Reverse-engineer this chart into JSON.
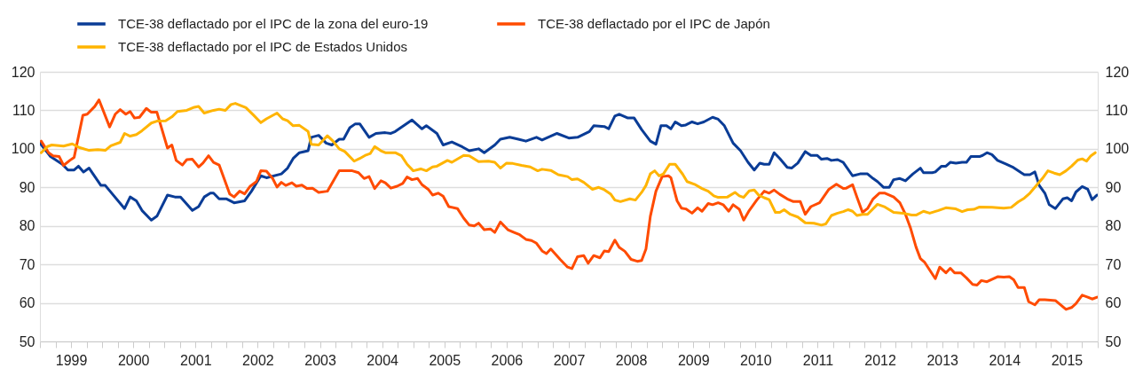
{
  "chart_data": {
    "type": "line",
    "legend": "top",
    "grid": "y",
    "xlim": [
      1999,
      2016
    ],
    "xticks": [
      {
        "value": 1999,
        "label": null
      },
      {
        "value": 1999.25,
        "label": null
      },
      {
        "value": 1999.5,
        "label": "1999"
      },
      {
        "value": 1999.75,
        "label": null
      },
      {
        "value": 2000,
        "label": null
      },
      {
        "value": 2000.25,
        "label": null
      },
      {
        "value": 2000.5,
        "label": "2000"
      },
      {
        "value": 2000.75,
        "label": null
      },
      {
        "value": 2001,
        "label": null
      },
      {
        "value": 2001.25,
        "label": null
      },
      {
        "value": 2001.5,
        "label": "2001"
      },
      {
        "value": 2001.75,
        "label": null
      },
      {
        "value": 2002,
        "label": null
      },
      {
        "value": 2002.25,
        "label": null
      },
      {
        "value": 2002.5,
        "label": "2002"
      },
      {
        "value": 2002.75,
        "label": null
      },
      {
        "value": 2003,
        "label": null
      },
      {
        "value": 2003.25,
        "label": null
      },
      {
        "value": 2003.5,
        "label": "2003"
      },
      {
        "value": 2003.75,
        "label": null
      },
      {
        "value": 2004,
        "label": null
      },
      {
        "value": 2004.25,
        "label": null
      },
      {
        "value": 2004.5,
        "label": "2004"
      },
      {
        "value": 2004.75,
        "label": null
      },
      {
        "value": 2005,
        "label": null
      },
      {
        "value": 2005.25,
        "label": null
      },
      {
        "value": 2005.5,
        "label": "2005"
      },
      {
        "value": 2005.75,
        "label": null
      },
      {
        "value": 2006,
        "label": null
      },
      {
        "value": 2006.25,
        "label": null
      },
      {
        "value": 2006.5,
        "label": "2006"
      },
      {
        "value": 2006.75,
        "label": null
      },
      {
        "value": 2007,
        "label": null
      },
      {
        "value": 2007.25,
        "label": null
      },
      {
        "value": 2007.5,
        "label": "2007"
      },
      {
        "value": 2007.75,
        "label": null
      },
      {
        "value": 2008,
        "label": null
      },
      {
        "value": 2008.25,
        "label": null
      },
      {
        "value": 2008.5,
        "label": "2008"
      },
      {
        "value": 2008.75,
        "label": null
      },
      {
        "value": 2009,
        "label": null
      },
      {
        "value": 2009.25,
        "label": null
      },
      {
        "value": 2009.5,
        "label": "2009"
      },
      {
        "value": 2009.75,
        "label": null
      },
      {
        "value": 2010,
        "label": null
      },
      {
        "value": 2010.25,
        "label": null
      },
      {
        "value": 2010.5,
        "label": "2010"
      },
      {
        "value": 2010.75,
        "label": null
      },
      {
        "value": 2011,
        "label": null
      },
      {
        "value": 2011.25,
        "label": null
      },
      {
        "value": 2011.5,
        "label": "2011"
      },
      {
        "value": 2011.75,
        "label": null
      },
      {
        "value": 2012,
        "label": null
      },
      {
        "value": 2012.25,
        "label": null
      },
      {
        "value": 2012.5,
        "label": "2012"
      },
      {
        "value": 2012.75,
        "label": null
      },
      {
        "value": 2013,
        "label": null
      },
      {
        "value": 2013.25,
        "label": null
      },
      {
        "value": 2013.5,
        "label": "2013"
      },
      {
        "value": 2013.75,
        "label": null
      },
      {
        "value": 2014,
        "label": null
      },
      {
        "value": 2014.25,
        "label": null
      },
      {
        "value": 2014.5,
        "label": "2014"
      },
      {
        "value": 2014.75,
        "label": null
      },
      {
        "value": 2015,
        "label": null
      },
      {
        "value": 2015.25,
        "label": null
      },
      {
        "value": 2015.5,
        "label": "2015"
      },
      {
        "value": 2015.75,
        "label": null
      },
      {
        "value": 2016,
        "label": null
      }
    ],
    "ylim": [
      50,
      120
    ],
    "yticks": [
      50,
      60,
      70,
      80,
      90,
      100,
      110,
      120
    ],
    "y2lim": [
      50,
      120
    ],
    "y2ticks": [
      50,
      60,
      70,
      80,
      90,
      100,
      110,
      120
    ],
    "series": [
      {
        "name": "TCE-38 deflactado por el IPC de la zona del euro-19",
        "color": "#0a3c96",
        "x": [
          1999.0,
          1999.17,
          1999.36,
          1999.45,
          1999.55,
          1999.62,
          1999.7,
          1999.79,
          1999.98,
          2000.05,
          2000.36,
          2000.45,
          2000.55,
          2000.64,
          2000.79,
          2000.88,
          2001.05,
          2001.17,
          2001.26,
          2001.45,
          2001.55,
          2001.64,
          2001.74,
          2001.79,
          2001.88,
          2002.0,
          2002.12,
          2002.29,
          2002.4,
          2002.55,
          2002.64,
          2002.88,
          2002.98,
          2003.07,
          2003.17,
          2003.31,
          2003.36,
          2003.48,
          2003.6,
          2003.69,
          2003.81,
          2003.88,
          2003.98,
          2004.07,
          2004.14,
          2004.29,
          2004.4,
          2004.55,
          2004.64,
          2004.71,
          2004.98,
          2005.14,
          2005.21,
          2005.38,
          2005.48,
          2005.62,
          2005.79,
          2005.9,
          2006.05,
          2006.14,
          2006.31,
          2006.4,
          2006.55,
          2006.69,
          2006.81,
          2006.98,
          2007.07,
          2007.31,
          2007.5,
          2007.64,
          2007.83,
          2007.9,
          2008.07,
          2008.14,
          2008.24,
          2008.31,
          2008.45,
          2008.55,
          2008.67,
          2008.81,
          2008.9,
          2008.98,
          2009.07,
          2009.14,
          2009.21,
          2009.31,
          2009.38,
          2009.48,
          2009.57,
          2009.67,
          2009.81,
          2009.9,
          2010.0,
          2010.14,
          2010.26,
          2010.38,
          2010.48,
          2010.57,
          2010.64,
          2010.72,
          2010.8,
          2010.89,
          2011.01,
          2011.08,
          2011.18,
          2011.3,
          2011.39,
          2011.49,
          2011.56,
          2011.65,
          2011.72,
          2011.82,
          2011.91,
          2012.06,
          2012.18,
          2012.3,
          2012.39,
          2012.46,
          2012.56,
          2012.65,
          2012.72,
          2012.82,
          2012.91,
          2013.03,
          2013.15,
          2013.2,
          2013.34,
          2013.39,
          2013.49,
          2013.56,
          2013.63,
          2013.72,
          2013.82,
          2013.89,
          2013.96,
          2014.1,
          2014.15,
          2014.22,
          2014.3,
          2014.39,
          2014.53,
          2014.63,
          2014.77,
          2014.82,
          2014.91,
          2014.99,
          2015.06,
          2015.15,
          2015.22,
          2015.32,
          2015.44,
          2015.51,
          2015.58,
          2015.65,
          2015.75,
          2015.84,
          2015.91,
          2015.99
        ],
        "values": [
          101.5,
          98,
          96,
          94.5,
          94.5,
          95.5,
          94,
          95,
          90.5,
          90.5,
          84.5,
          87.5,
          86.5,
          84,
          81.5,
          82.5,
          88,
          87.5,
          87.5,
          84,
          85,
          87.5,
          88.5,
          88.5,
          87,
          87,
          86,
          86.5,
          89,
          93,
          92.5,
          93.5,
          95,
          97.5,
          99,
          99.5,
          103,
          103.5,
          101.5,
          101,
          102.5,
          102.5,
          105.5,
          106.5,
          106.5,
          103,
          104,
          104.2,
          104,
          104.5,
          107.5,
          105.2,
          106,
          104,
          101,
          101.8,
          100.5,
          99.5,
          100,
          99,
          101,
          102.5,
          103,
          102.5,
          102,
          103,
          102.3,
          104,
          102.8,
          103,
          104.5,
          106,
          105.8,
          105.2,
          108.5,
          109,
          108,
          108,
          105,
          102,
          101.2,
          106,
          106,
          105.2,
          107,
          106,
          106.2,
          107,
          106.5,
          107,
          108.2,
          107.7,
          106,
          101.5,
          99.5,
          96.5,
          94.5,
          96.3,
          96,
          96,
          99,
          97.5,
          95.2,
          95,
          96.3,
          99.3,
          98.3,
          98.3,
          97.3,
          97.5,
          97,
          97.2,
          96.5,
          93,
          93.5,
          93.5,
          92.3,
          91.5,
          90,
          90,
          92,
          92.3,
          91.7,
          93.5,
          95,
          93.8,
          93.8,
          94,
          95.5,
          95.5,
          96.5,
          96.3,
          96.5,
          96.5,
          98,
          98,
          98.3,
          99,
          98.5,
          97,
          96,
          95.3,
          93.8,
          93.3,
          93.3,
          94,
          90.5,
          88.5,
          85.5,
          84.5,
          87,
          87.3,
          86.5,
          88.8,
          90.2,
          89.5,
          86.8,
          88
        ]
      },
      {
        "name": "TCE-38 deflactado por el IPC de Japón",
        "color": "#ff4b00",
        "x": [
          1999.02,
          1999.14,
          1999.21,
          1999.31,
          1999.38,
          1999.48,
          1999.55,
          1999.69,
          1999.76,
          1999.88,
          1999.95,
          2000.12,
          2000.21,
          2000.29,
          2000.38,
          2000.45,
          2000.52,
          2000.6,
          2000.71,
          2000.79,
          2000.88,
          2001.05,
          2001.12,
          2001.19,
          2001.29,
          2001.36,
          2001.45,
          2001.55,
          2001.62,
          2001.71,
          2001.79,
          2001.88,
          2002.05,
          2002.12,
          2002.21,
          2002.29,
          2002.38,
          2002.48,
          2002.55,
          2002.64,
          2002.74,
          2002.81,
          2002.88,
          2002.95,
          2003.05,
          2003.12,
          2003.21,
          2003.29,
          2003.38,
          2003.48,
          2003.62,
          2003.81,
          2004.02,
          2004.12,
          2004.21,
          2004.29,
          2004.38,
          2004.48,
          2004.55,
          2004.64,
          2004.74,
          2004.83,
          2004.9,
          2004.98,
          2005.07,
          2005.14,
          2005.24,
          2005.31,
          2005.4,
          2005.48,
          2005.57,
          2005.71,
          2005.81,
          2005.9,
          2005.98,
          2006.05,
          2006.14,
          2006.24,
          2006.31,
          2006.4,
          2006.52,
          2006.62,
          2006.71,
          2006.81,
          2006.9,
          2006.98,
          2007.07,
          2007.14,
          2007.21,
          2007.36,
          2007.48,
          2007.55,
          2007.64,
          2007.74,
          2007.81,
          2007.9,
          2008.0,
          2008.07,
          2008.14,
          2008.24,
          2008.31,
          2008.4,
          2008.5,
          2008.6,
          2008.67,
          2008.74,
          2008.81,
          2008.9,
          2009.0,
          2009.1,
          2009.14,
          2009.24,
          2009.31,
          2009.38,
          2009.48,
          2009.57,
          2009.64,
          2009.74,
          2009.81,
          2009.9,
          2009.98,
          2010.07,
          2010.14,
          2010.24,
          2010.31,
          2010.4,
          2010.52,
          2010.64,
          2010.72,
          2010.8,
          2010.89,
          2011.01,
          2011.11,
          2011.22,
          2011.3,
          2011.39,
          2011.53,
          2011.68,
          2011.8,
          2011.91,
          2011.96,
          2012.06,
          2012.13,
          2012.22,
          2012.3,
          2012.39,
          2012.49,
          2012.58,
          2012.72,
          2012.82,
          2012.91,
          2012.99,
          2013.08,
          2013.15,
          2013.22,
          2013.39,
          2013.46,
          2013.56,
          2013.63,
          2013.7,
          2013.8,
          2013.89,
          2013.99,
          2014.06,
          2014.13,
          2014.22,
          2014.39,
          2014.49,
          2014.58,
          2014.65,
          2014.72,
          2014.82,
          2014.89,
          2014.99,
          2015.06,
          2015.15,
          2015.32,
          2015.49,
          2015.58,
          2015.65,
          2015.75,
          2015.84,
          2015.91,
          2015.99
        ],
        "values": [
          102,
          99,
          98.2,
          98,
          95.7,
          97,
          97.8,
          108.7,
          109,
          111,
          112.7,
          105.7,
          109,
          110.2,
          109,
          109.7,
          108,
          108.2,
          110.5,
          109.5,
          109.5,
          100.2,
          101,
          97,
          95.8,
          97.2,
          97.3,
          95.3,
          96.3,
          98.2,
          96.5,
          95.8,
          88.3,
          87.5,
          89,
          88.3,
          90.3,
          91.5,
          94.3,
          94.2,
          92.3,
          90.1,
          91.3,
          90.5,
          91.2,
          90.3,
          90.6,
          89.7,
          89.8,
          88.7,
          89,
          94.3,
          94.3,
          93.8,
          92.3,
          92.8,
          89.7,
          91.7,
          91.2,
          89.8,
          90.3,
          91,
          92.7,
          92,
          92.3,
          90.7,
          89.5,
          88,
          88.5,
          87.7,
          85,
          84.5,
          82,
          80.2,
          80,
          80.7,
          79,
          79.2,
          78.3,
          81,
          79,
          78.3,
          77.7,
          76.5,
          76.2,
          75.5,
          73.5,
          72.8,
          74,
          71.3,
          69.3,
          68.9,
          72,
          72.3,
          70.3,
          72.3,
          71.7,
          73.5,
          73.3,
          76.3,
          74.4,
          73.4,
          71.3,
          70.8,
          71,
          74,
          82.5,
          89,
          92.8,
          93,
          92.5,
          86.5,
          84.6,
          84.4,
          83.3,
          84.7,
          83.8,
          85.8,
          85.5,
          86,
          85.5,
          83.8,
          85.5,
          84.3,
          81.5,
          84,
          86.7,
          89,
          88.5,
          89.3,
          88.2,
          87,
          86.3,
          86.3,
          83,
          85,
          86,
          89.5,
          90.8,
          89.7,
          89.8,
          90.7,
          87.5,
          83.5,
          84.5,
          87,
          88.5,
          88.5,
          87.5,
          86,
          83,
          79.5,
          74.5,
          71.5,
          70.5,
          66.3,
          69.3,
          67.8,
          69,
          67.8,
          67.8,
          66.5,
          64.8,
          64.6,
          65.8,
          65.5,
          66.8,
          66.7,
          66.8,
          66,
          64,
          64,
          60.3,
          59.5,
          60.8,
          60.8,
          60.6,
          58.3,
          58.8,
          59.8,
          62,
          61.5,
          61,
          61.5
        ]
      },
      {
        "name": "TCE-38 deflactado por el IPC de Estados Unidos",
        "color": "#ffb400",
        "x": [
          1999.02,
          1999.12,
          1999.19,
          1999.38,
          1999.52,
          1999.64,
          1999.79,
          1999.93,
          2000.05,
          2000.14,
          2000.29,
          2000.36,
          2000.45,
          2000.55,
          2000.64,
          2000.79,
          2000.88,
          2001.02,
          2001.12,
          2001.21,
          2001.36,
          2001.48,
          2001.55,
          2001.64,
          2001.79,
          2001.88,
          2001.98,
          2002.07,
          2002.14,
          2002.31,
          2002.43,
          2002.55,
          2002.64,
          2002.81,
          2002.9,
          2002.98,
          2003.07,
          2003.17,
          2003.31,
          2003.36,
          2003.48,
          2003.62,
          2003.71,
          2003.81,
          2003.9,
          2004.05,
          2004.14,
          2004.24,
          2004.31,
          2004.38,
          2004.48,
          2004.55,
          2004.64,
          2004.71,
          2004.81,
          2004.9,
          2005.0,
          2005.12,
          2005.21,
          2005.31,
          2005.38,
          2005.55,
          2005.62,
          2005.81,
          2005.9,
          2006.05,
          2006.21,
          2006.31,
          2006.4,
          2006.5,
          2006.6,
          2006.74,
          2006.88,
          2007.0,
          2007.07,
          2007.21,
          2007.33,
          2007.48,
          2007.55,
          2007.64,
          2007.74,
          2007.88,
          2007.98,
          2008.07,
          2008.17,
          2008.24,
          2008.33,
          2008.48,
          2008.57,
          2008.67,
          2008.74,
          2008.81,
          2008.88,
          2008.95,
          2009.02,
          2009.12,
          2009.21,
          2009.33,
          2009.4,
          2009.52,
          2009.64,
          2009.74,
          2009.83,
          2009.9,
          2010.05,
          2010.17,
          2010.24,
          2010.31,
          2010.4,
          2010.48,
          2010.55,
          2010.64,
          2010.72,
          2010.82,
          2010.89,
          2010.96,
          2011.06,
          2011.18,
          2011.3,
          2011.44,
          2011.56,
          2011.63,
          2011.72,
          2011.82,
          2011.91,
          2011.99,
          2012.06,
          2012.13,
          2012.22,
          2012.3,
          2012.46,
          2012.58,
          2012.72,
          2012.87,
          2013.01,
          2013.08,
          2013.2,
          2013.3,
          2013.44,
          2013.56,
          2013.72,
          2013.82,
          2013.91,
          2014.01,
          2014.1,
          2014.3,
          2014.39,
          2014.49,
          2014.61,
          2014.72,
          2014.82,
          2014.91,
          2015.01,
          2015.11,
          2015.2,
          2015.3,
          2015.39,
          2015.49,
          2015.58,
          2015.68,
          2015.75,
          2015.82,
          2015.89,
          2015.96
        ],
        "values": [
          99,
          100.6,
          101,
          100.7,
          101.3,
          100.3,
          99.6,
          99.8,
          99.6,
          100.8,
          101.7,
          104,
          103.3,
          103.7,
          104.7,
          106.7,
          107.2,
          107.3,
          108.3,
          109.7,
          110,
          110.8,
          111,
          109.3,
          110,
          110.3,
          110,
          111.5,
          111.8,
          110.7,
          108.8,
          106.8,
          107.8,
          109.3,
          107.8,
          107.3,
          106,
          106.1,
          104.5,
          101.2,
          101,
          103.4,
          102,
          100,
          99.3,
          96.8,
          97.5,
          98.4,
          98.8,
          100.6,
          99.5,
          99,
          99,
          99,
          98.2,
          96,
          94.3,
          94.8,
          94.3,
          95.3,
          95.5,
          97,
          96.5,
          98.3,
          98.2,
          96.7,
          96.8,
          96.5,
          95,
          96.3,
          96.2,
          95.7,
          95.3,
          94.3,
          94.7,
          94.4,
          93.3,
          92.8,
          92,
          92.2,
          91.3,
          89.5,
          90,
          89.4,
          88.3,
          86.7,
          86.3,
          87,
          86.7,
          88.7,
          90.5,
          93.5,
          94.3,
          93,
          93.5,
          96,
          96,
          93.4,
          91.5,
          90.8,
          89.7,
          89,
          87.8,
          87.4,
          87.5,
          88.7,
          87.8,
          87.4,
          89.1,
          89.3,
          88,
          87.3,
          86.8,
          83.5,
          83.5,
          84.2,
          83,
          82.3,
          80.8,
          80.7,
          80.2,
          80.5,
          82.7,
          83.3,
          83.7,
          84.2,
          83.8,
          82.7,
          83,
          83,
          85.6,
          84.9,
          83.5,
          83.3,
          82.8,
          82.8,
          83.8,
          83.3,
          84,
          84.7,
          84.4,
          83.7,
          84.2,
          84.3,
          84.9,
          84.8,
          84.7,
          84.6,
          84.8,
          86.2,
          87.2,
          88.5,
          90.4,
          92.3,
          94.3,
          93.7,
          93.3,
          94.3,
          95.5,
          97.1,
          97.4,
          96.8,
          98.2,
          99
        ]
      }
    ]
  }
}
